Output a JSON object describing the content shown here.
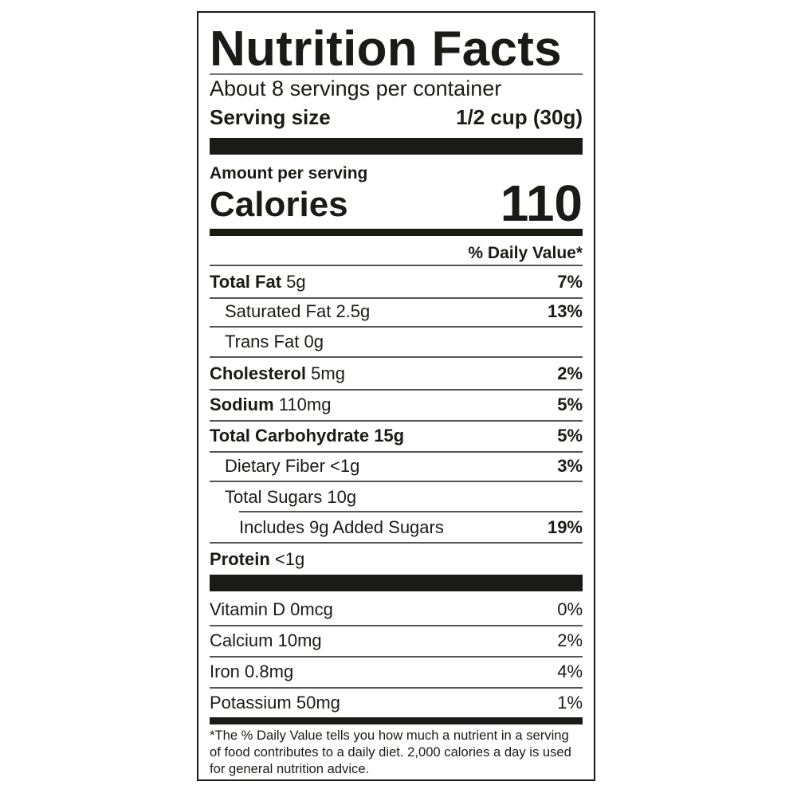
{
  "title": "Nutrition Facts",
  "servings_per_container": "About 8 servings per container",
  "serving_size": {
    "label": "Serving size",
    "value": "1/2 cup (30g)"
  },
  "amount_per_serving": "Amount per serving",
  "calories": {
    "label": "Calories",
    "value": "110"
  },
  "daily_value_header": "% Daily Value*",
  "nutrients": [
    {
      "name": "Total Fat",
      "amount": "5g",
      "dv": "7%"
    },
    {
      "name": "Saturated Fat",
      "amount": "2.5g",
      "dv": "13%"
    },
    {
      "name": "Trans Fat",
      "amount": "0g",
      "dv": ""
    },
    {
      "name": "Cholesterol",
      "amount": "5mg",
      "dv": "2%"
    },
    {
      "name": "Sodium",
      "amount": "110mg",
      "dv": "5%"
    },
    {
      "name": "Total Carbohydrate",
      "amount": "15g",
      "dv": "5%"
    },
    {
      "name": "Dietary Fiber",
      "amount": "<1g",
      "dv": "3%"
    },
    {
      "name": "Total Sugars",
      "amount": "10g",
      "dv": ""
    },
    {
      "name": "Includes 9g Added Sugars",
      "amount": "",
      "dv": "19%"
    },
    {
      "name": "Protein",
      "amount": "<1g",
      "dv": ""
    }
  ],
  "vitamins": [
    {
      "name": "Vitamin D",
      "amount": "0mcg",
      "dv": "0%"
    },
    {
      "name": "Calcium",
      "amount": "10mg",
      "dv": "2%"
    },
    {
      "name": "Iron",
      "amount": "0.8mg",
      "dv": "4%"
    },
    {
      "name": "Potassium",
      "amount": "50mg",
      "dv": "1%"
    }
  ],
  "footnote": "*The % Daily Value tells you how much a nutrient in a serving of food contributes to a daily diet. 2,000 calories a day is used for general nutrition advice."
}
